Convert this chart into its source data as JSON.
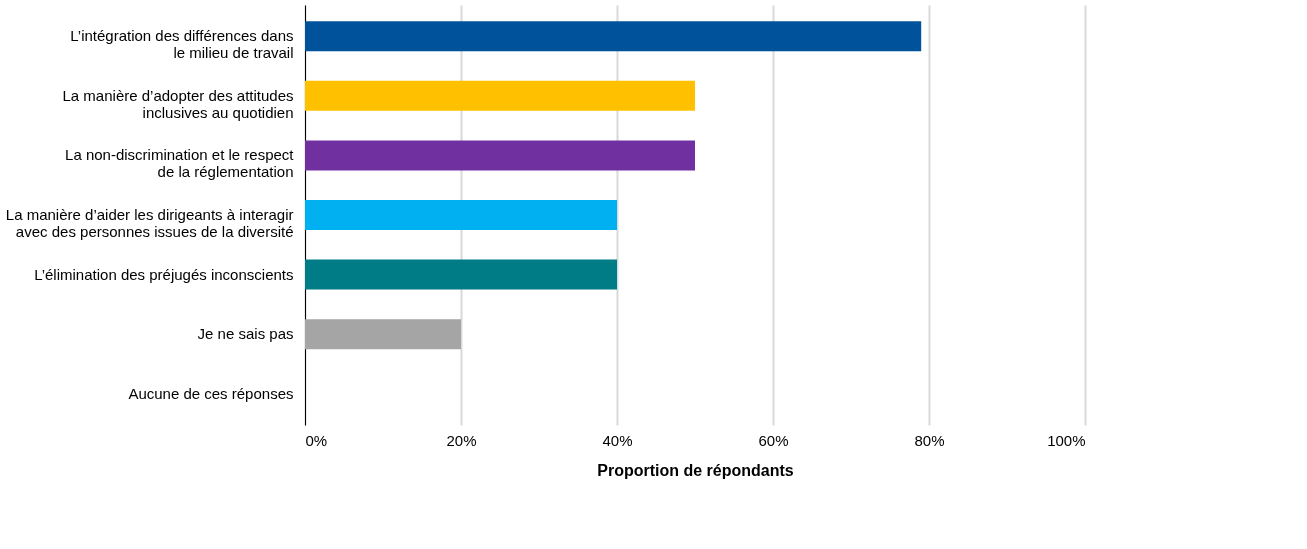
{
  "chart_data": {
    "type": "bar",
    "orientation": "horizontal",
    "xlabel": "Proportion de répondants",
    "categories": [
      "L’intégration des différences dans\nle milieu de travail",
      "La manière d’adopter des attitudes\ninclusives au quotidien",
      "La non-discrimination et le respect\nde la réglementation",
      "La manière d’aider les dirigeants à interagir\navec des personnes issues de la diversité",
      "L’élimination des préjugés inconscients",
      "Je ne sais pas",
      "Aucune de ces réponses"
    ],
    "values": [
      79,
      50,
      50,
      40,
      40,
      20,
      0
    ],
    "colors": [
      "#00529b",
      "#ffc000",
      "#7030a0",
      "#00b0f0",
      "#007c87",
      "#a5a5a5",
      "#a5a5a5"
    ],
    "xlim": [
      0,
      100
    ],
    "xticks": [
      {
        "value": 0,
        "label": "0%"
      },
      {
        "value": 20,
        "label": "20%"
      },
      {
        "value": 40,
        "label": "40%"
      },
      {
        "value": 60,
        "label": "60%"
      },
      {
        "value": 80,
        "label": "80%"
      },
      {
        "value": 100,
        "label": "100%"
      }
    ],
    "grid": "x"
  }
}
